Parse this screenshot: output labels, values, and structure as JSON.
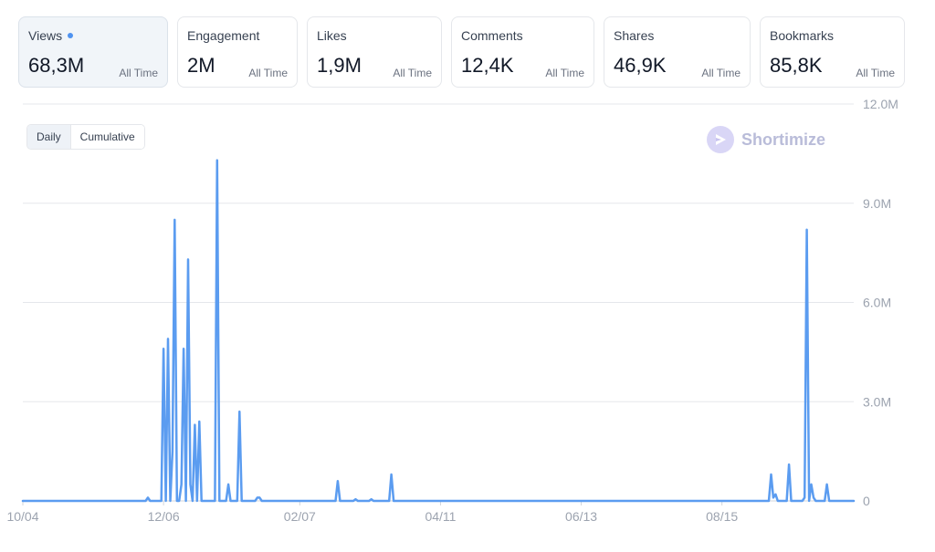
{
  "stats": [
    {
      "label": "Views",
      "value": "68,3M",
      "scope": "All Time",
      "active": true
    },
    {
      "label": "Engagement",
      "value": "2M",
      "scope": "All Time"
    },
    {
      "label": "Likes",
      "value": "1,9M",
      "scope": "All Time"
    },
    {
      "label": "Comments",
      "value": "12,4K",
      "scope": "All Time"
    },
    {
      "label": "Shares",
      "value": "46,9K",
      "scope": "All Time"
    },
    {
      "label": "Bookmarks",
      "value": "85,8K",
      "scope": "All Time"
    }
  ],
  "toggle": {
    "daily": "Daily",
    "cumulative": "Cumulative",
    "selected": "Daily"
  },
  "watermark": {
    "text": "Shortimize"
  },
  "colors": {
    "line": "#5b9cf0",
    "grid": "#e5e7eb",
    "axis_text": "#9ca3af",
    "dot": "#4f93f0"
  },
  "chart_data": {
    "type": "line",
    "title": "",
    "xlabel": "",
    "ylabel": "",
    "ylim": [
      0,
      12000000
    ],
    "y_ticks": [
      "0",
      "3.0M",
      "6.0M",
      "9.0M",
      "12.0M"
    ],
    "y_tick_values": [
      0,
      3000000,
      6000000,
      9000000,
      12000000
    ],
    "x_ticks": [
      "10/04",
      "12/06",
      "02/07",
      "04/11",
      "06/13",
      "08/15"
    ],
    "x_tick_positions": [
      0,
      63,
      124,
      187,
      250,
      313
    ],
    "xlim": [
      0,
      372
    ],
    "grid": true,
    "series": [
      {
        "values": [
          [
            0,
            0
          ],
          [
            55,
            0
          ],
          [
            56,
            100000
          ],
          [
            57,
            0
          ],
          [
            62,
            0
          ],
          [
            63,
            4600000
          ],
          [
            64,
            0
          ],
          [
            65,
            4900000
          ],
          [
            66,
            0
          ],
          [
            67,
            1500000
          ],
          [
            68,
            8500000
          ],
          [
            69,
            0
          ],
          [
            70,
            0
          ],
          [
            71,
            500000
          ],
          [
            72,
            4600000
          ],
          [
            73,
            0
          ],
          [
            74,
            7300000
          ],
          [
            75,
            500000
          ],
          [
            76,
            0
          ],
          [
            77,
            2300000
          ],
          [
            78,
            0
          ],
          [
            79,
            2400000
          ],
          [
            80,
            0
          ],
          [
            86,
            0
          ],
          [
            87,
            10300000
          ],
          [
            88,
            0
          ],
          [
            91,
            0
          ],
          [
            92,
            500000
          ],
          [
            93,
            0
          ],
          [
            96,
            0
          ],
          [
            97,
            2700000
          ],
          [
            98,
            0
          ],
          [
            104,
            0
          ],
          [
            105,
            100000
          ],
          [
            106,
            100000
          ],
          [
            107,
            0
          ],
          [
            140,
            0
          ],
          [
            141,
            600000
          ],
          [
            142,
            0
          ],
          [
            148,
            0
          ],
          [
            149,
            50000
          ],
          [
            150,
            0
          ],
          [
            155,
            0
          ],
          [
            156,
            50000
          ],
          [
            157,
            0
          ],
          [
            164,
            0
          ],
          [
            165,
            800000
          ],
          [
            166,
            0
          ],
          [
            334,
            0
          ],
          [
            335,
            800000
          ],
          [
            336,
            100000
          ],
          [
            337,
            200000
          ],
          [
            338,
            0
          ],
          [
            342,
            0
          ],
          [
            343,
            1100000
          ],
          [
            344,
            0
          ],
          [
            349,
            0
          ],
          [
            350,
            100000
          ],
          [
            351,
            8200000
          ],
          [
            352,
            0
          ],
          [
            353,
            500000
          ],
          [
            354,
            100000
          ],
          [
            355,
            0
          ],
          [
            359,
            0
          ],
          [
            360,
            500000
          ],
          [
            361,
            0
          ],
          [
            372,
            0
          ]
        ]
      }
    ]
  }
}
